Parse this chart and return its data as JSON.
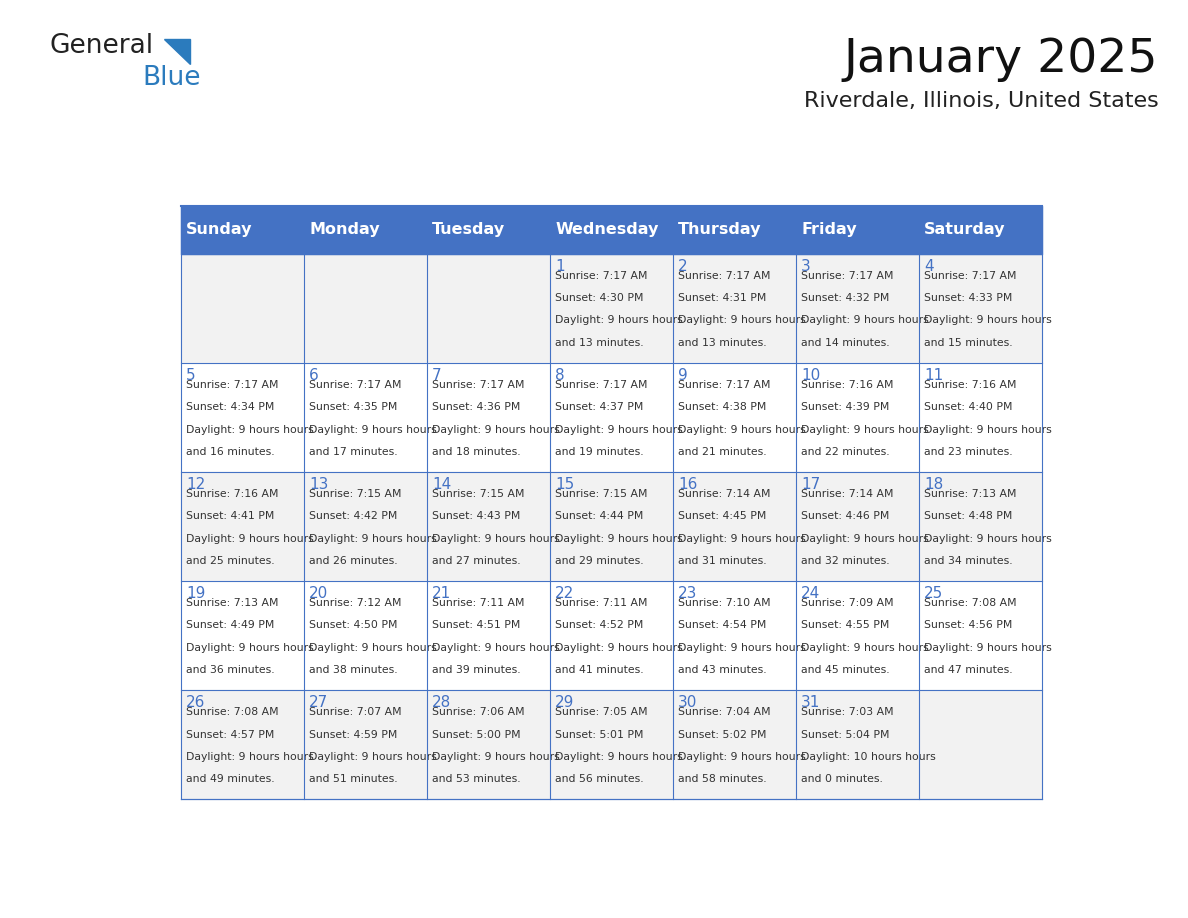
{
  "title": "January 2025",
  "subtitle": "Riverdale, Illinois, United States",
  "header_bg": "#4472C4",
  "header_text_color": "#FFFFFF",
  "cell_bg_odd": "#F2F2F2",
  "cell_bg_even": "#FFFFFF",
  "cell_text_color": "#333333",
  "grid_line_color": "#4472C4",
  "days_of_week": [
    "Sunday",
    "Monday",
    "Tuesday",
    "Wednesday",
    "Thursday",
    "Friday",
    "Saturday"
  ],
  "weeks": [
    [
      {
        "day": null,
        "sunrise": null,
        "sunset": null,
        "daylight": null
      },
      {
        "day": null,
        "sunrise": null,
        "sunset": null,
        "daylight": null
      },
      {
        "day": null,
        "sunrise": null,
        "sunset": null,
        "daylight": null
      },
      {
        "day": 1,
        "sunrise": "7:17 AM",
        "sunset": "4:30 PM",
        "daylight": "9 hours and 13 minutes."
      },
      {
        "day": 2,
        "sunrise": "7:17 AM",
        "sunset": "4:31 PM",
        "daylight": "9 hours and 13 minutes."
      },
      {
        "day": 3,
        "sunrise": "7:17 AM",
        "sunset": "4:32 PM",
        "daylight": "9 hours and 14 minutes."
      },
      {
        "day": 4,
        "sunrise": "7:17 AM",
        "sunset": "4:33 PM",
        "daylight": "9 hours and 15 minutes."
      }
    ],
    [
      {
        "day": 5,
        "sunrise": "7:17 AM",
        "sunset": "4:34 PM",
        "daylight": "9 hours and 16 minutes."
      },
      {
        "day": 6,
        "sunrise": "7:17 AM",
        "sunset": "4:35 PM",
        "daylight": "9 hours and 17 minutes."
      },
      {
        "day": 7,
        "sunrise": "7:17 AM",
        "sunset": "4:36 PM",
        "daylight": "9 hours and 18 minutes."
      },
      {
        "day": 8,
        "sunrise": "7:17 AM",
        "sunset": "4:37 PM",
        "daylight": "9 hours and 19 minutes."
      },
      {
        "day": 9,
        "sunrise": "7:17 AM",
        "sunset": "4:38 PM",
        "daylight": "9 hours and 21 minutes."
      },
      {
        "day": 10,
        "sunrise": "7:16 AM",
        "sunset": "4:39 PM",
        "daylight": "9 hours and 22 minutes."
      },
      {
        "day": 11,
        "sunrise": "7:16 AM",
        "sunset": "4:40 PM",
        "daylight": "9 hours and 23 minutes."
      }
    ],
    [
      {
        "day": 12,
        "sunrise": "7:16 AM",
        "sunset": "4:41 PM",
        "daylight": "9 hours and 25 minutes."
      },
      {
        "day": 13,
        "sunrise": "7:15 AM",
        "sunset": "4:42 PM",
        "daylight": "9 hours and 26 minutes."
      },
      {
        "day": 14,
        "sunrise": "7:15 AM",
        "sunset": "4:43 PM",
        "daylight": "9 hours and 27 minutes."
      },
      {
        "day": 15,
        "sunrise": "7:15 AM",
        "sunset": "4:44 PM",
        "daylight": "9 hours and 29 minutes."
      },
      {
        "day": 16,
        "sunrise": "7:14 AM",
        "sunset": "4:45 PM",
        "daylight": "9 hours and 31 minutes."
      },
      {
        "day": 17,
        "sunrise": "7:14 AM",
        "sunset": "4:46 PM",
        "daylight": "9 hours and 32 minutes."
      },
      {
        "day": 18,
        "sunrise": "7:13 AM",
        "sunset": "4:48 PM",
        "daylight": "9 hours and 34 minutes."
      }
    ],
    [
      {
        "day": 19,
        "sunrise": "7:13 AM",
        "sunset": "4:49 PM",
        "daylight": "9 hours and 36 minutes."
      },
      {
        "day": 20,
        "sunrise": "7:12 AM",
        "sunset": "4:50 PM",
        "daylight": "9 hours and 38 minutes."
      },
      {
        "day": 21,
        "sunrise": "7:11 AM",
        "sunset": "4:51 PM",
        "daylight": "9 hours and 39 minutes."
      },
      {
        "day": 22,
        "sunrise": "7:11 AM",
        "sunset": "4:52 PM",
        "daylight": "9 hours and 41 minutes."
      },
      {
        "day": 23,
        "sunrise": "7:10 AM",
        "sunset": "4:54 PM",
        "daylight": "9 hours and 43 minutes."
      },
      {
        "day": 24,
        "sunrise": "7:09 AM",
        "sunset": "4:55 PM",
        "daylight": "9 hours and 45 minutes."
      },
      {
        "day": 25,
        "sunrise": "7:08 AM",
        "sunset": "4:56 PM",
        "daylight": "9 hours and 47 minutes."
      }
    ],
    [
      {
        "day": 26,
        "sunrise": "7:08 AM",
        "sunset": "4:57 PM",
        "daylight": "9 hours and 49 minutes."
      },
      {
        "day": 27,
        "sunrise": "7:07 AM",
        "sunset": "4:59 PM",
        "daylight": "9 hours and 51 minutes."
      },
      {
        "day": 28,
        "sunrise": "7:06 AM",
        "sunset": "5:00 PM",
        "daylight": "9 hours and 53 minutes."
      },
      {
        "day": 29,
        "sunrise": "7:05 AM",
        "sunset": "5:01 PM",
        "daylight": "9 hours and 56 minutes."
      },
      {
        "day": 30,
        "sunrise": "7:04 AM",
        "sunset": "5:02 PM",
        "daylight": "9 hours and 58 minutes."
      },
      {
        "day": 31,
        "sunrise": "7:03 AM",
        "sunset": "5:04 PM",
        "daylight": "10 hours and 0 minutes."
      },
      {
        "day": null,
        "sunrise": null,
        "sunset": null,
        "daylight": null
      }
    ]
  ],
  "logo_text1": "General",
  "logo_text2": "Blue",
  "logo_text1_color": "#222222",
  "logo_text2_color": "#2B7BBD",
  "logo_triangle_color": "#2B7BBD"
}
